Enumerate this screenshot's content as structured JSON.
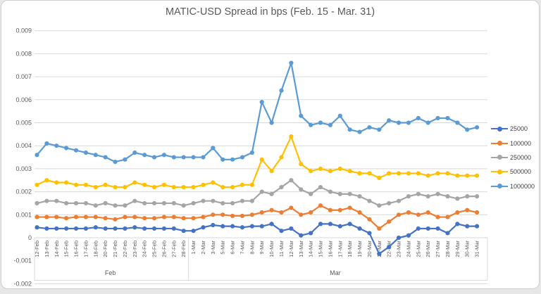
{
  "chart_data": {
    "type": "line",
    "title": "MATIC-USD Spread in bps (Feb. 15 - Mar. 31)",
    "xlabel": "",
    "ylabel": "",
    "ylim": [
      -0.002,
      0.009
    ],
    "grid": true,
    "legend_position": "right",
    "colors": {
      "grid": "#d9d9d9",
      "axis_text": "#595959",
      "title_text": "#595959"
    },
    "y_ticks": [
      "0.009",
      "0.008",
      "0.007",
      "0.006",
      "0.005",
      "0.004",
      "0.003",
      "0.002",
      "0.001",
      "0",
      "-0.001",
      "-0.002"
    ],
    "categories": [
      "12-Feb",
      "13-Feb",
      "14-Feb",
      "15-Feb",
      "16-Feb",
      "17-Feb",
      "18-Feb",
      "20-Feb",
      "21-Feb",
      "22-Feb",
      "23-Feb",
      "24-Feb",
      "25-Feb",
      "26-Feb",
      "27-Feb",
      "28-Feb",
      "1-Mar",
      "2-Mar",
      "3-Mar",
      "5-Mar",
      "6-Mar",
      "7-Mar",
      "8-Mar",
      "9-Mar",
      "10-Mar",
      "11-Mar",
      "12-Mar",
      "13-Mar",
      "14-Mar",
      "15-Mar",
      "16-Mar",
      "17-Mar",
      "18-Mar",
      "19-Mar",
      "20-Mar",
      "21-Mar",
      "22-Mar",
      "23-Mar",
      "24-Mar",
      "25-Mar",
      "26-Mar",
      "27-Mar",
      "28-Mar",
      "29-Mar",
      "30-Mar",
      "31-Mar"
    ],
    "category_groups": [
      {
        "label": "Feb",
        "start": 0,
        "end": 15
      },
      {
        "label": "Mar",
        "start": 16,
        "end": 45
      }
    ],
    "series": [
      {
        "name": "25000",
        "color": "#4472C4",
        "values": [
          0.00045,
          0.0004,
          0.0004,
          0.0004,
          0.0004,
          0.0004,
          0.00045,
          0.0004,
          0.0004,
          0.0004,
          0.00045,
          0.0004,
          0.0004,
          0.0004,
          0.0004,
          0.0003,
          0.0003,
          0.00045,
          0.00055,
          0.0005,
          0.0005,
          0.00045,
          0.0005,
          0.0005,
          0.0006,
          0.0003,
          0.0004,
          0.0001,
          0.0002,
          0.0006,
          0.0006,
          0.0005,
          0.0006,
          0.0004,
          0.0002,
          -0.0007,
          -0.0004,
          0.0,
          0.0001,
          0.0004,
          0.0004,
          0.0004,
          0.0002,
          0.0006,
          0.0005,
          0.0005
        ]
      },
      {
        "name": "100000",
        "color": "#ED7D31",
        "values": [
          0.0009,
          0.0009,
          0.0009,
          0.00085,
          0.0009,
          0.0009,
          0.0009,
          0.00085,
          0.0008,
          0.0009,
          0.0009,
          0.00085,
          0.00085,
          0.0009,
          0.0009,
          0.00085,
          0.00085,
          0.0009,
          0.001,
          0.001,
          0.00095,
          0.00095,
          0.001,
          0.0011,
          0.0012,
          0.0011,
          0.0013,
          0.001,
          0.0011,
          0.0014,
          0.0012,
          0.0012,
          0.0013,
          0.0011,
          0.0008,
          0.0004,
          0.0007,
          0.001,
          0.0011,
          0.001,
          0.0011,
          0.0009,
          0.0009,
          0.0011,
          0.0012,
          0.0011
        ]
      },
      {
        "name": "250000",
        "color": "#A5A5A5",
        "values": [
          0.0015,
          0.0016,
          0.0016,
          0.0015,
          0.0015,
          0.0015,
          0.0014,
          0.0015,
          0.0014,
          0.0014,
          0.0016,
          0.0015,
          0.0015,
          0.0015,
          0.0015,
          0.0014,
          0.0015,
          0.0016,
          0.0016,
          0.0015,
          0.0015,
          0.0016,
          0.0016,
          0.002,
          0.0019,
          0.0022,
          0.0025,
          0.0021,
          0.0019,
          0.0022,
          0.002,
          0.0019,
          0.0019,
          0.0018,
          0.0016,
          0.0014,
          0.0015,
          0.0016,
          0.0018,
          0.0019,
          0.0018,
          0.0019,
          0.0018,
          0.0017,
          0.0018,
          0.0018
        ]
      },
      {
        "name": "500000",
        "color": "#FFC000",
        "values": [
          0.0023,
          0.0025,
          0.0024,
          0.0024,
          0.0023,
          0.0023,
          0.0022,
          0.0023,
          0.0022,
          0.0022,
          0.0024,
          0.0023,
          0.0022,
          0.0023,
          0.0022,
          0.0022,
          0.0022,
          0.0023,
          0.0024,
          0.0022,
          0.0022,
          0.0023,
          0.0023,
          0.0034,
          0.0029,
          0.0035,
          0.0044,
          0.0032,
          0.0029,
          0.003,
          0.0029,
          0.003,
          0.0029,
          0.0028,
          0.0028,
          0.0026,
          0.0028,
          0.0028,
          0.0028,
          0.0028,
          0.0027,
          0.0028,
          0.0028,
          0.0027,
          0.0027,
          0.0027
        ]
      },
      {
        "name": "1000000",
        "color": "#5B9BD5",
        "values": [
          0.0036,
          0.0041,
          0.004,
          0.0039,
          0.0038,
          0.0037,
          0.0036,
          0.0035,
          0.0033,
          0.0034,
          0.0037,
          0.0036,
          0.0035,
          0.0036,
          0.0035,
          0.0035,
          0.0035,
          0.0035,
          0.0039,
          0.0034,
          0.0034,
          0.0035,
          0.0037,
          0.0059,
          0.005,
          0.0064,
          0.0076,
          0.0053,
          0.0049,
          0.005,
          0.0049,
          0.0053,
          0.0047,
          0.0046,
          0.0048,
          0.0047,
          0.0051,
          0.005,
          0.005,
          0.0052,
          0.005,
          0.0052,
          0.0052,
          0.005,
          0.0047,
          0.0048
        ]
      }
    ]
  }
}
